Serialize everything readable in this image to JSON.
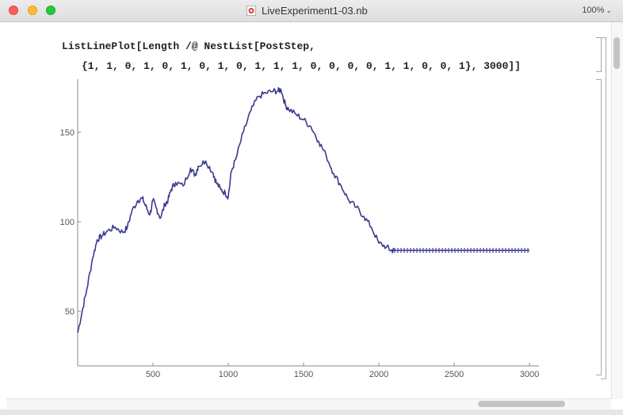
{
  "window": {
    "title": "LiveExperiment1-03.nb",
    "zoom": "100%",
    "icons": [
      "close-button",
      "minimize-button",
      "zoom-button",
      "mathematica-notebook-icon",
      "chevron-down-icon"
    ]
  },
  "input_cell": {
    "line1": "ListLinePlot[Length /@ NestList[PostStep,",
    "line2": "{1, 1, 0, 1, 0, 1, 0, 1, 0, 1, 1, 1, 0, 0, 0, 0, 1, 1, 0, 0, 1}, 3000]]"
  },
  "chart_data": {
    "type": "line",
    "title": "",
    "xlabel": "",
    "ylabel": "",
    "xlim": [
      0,
      3000
    ],
    "ylim": [
      50,
      175
    ],
    "x_ticks": [
      "500",
      "1000",
      "1500",
      "2000",
      "2500",
      "3000"
    ],
    "y_ticks": [
      "50",
      "100",
      "150"
    ],
    "grid": false,
    "series": [
      {
        "color": "#3b3b8f",
        "x": [
          0,
          30,
          60,
          100,
          130,
          160,
          200,
          250,
          300,
          330,
          360,
          400,
          430,
          450,
          480,
          500,
          520,
          550,
          580,
          600,
          620,
          650,
          700,
          750,
          780,
          800,
          850,
          900,
          920,
          950,
          980,
          1000,
          1020,
          1050,
          1100,
          1150,
          1200,
          1250,
          1300,
          1330,
          1350,
          1380,
          1400,
          1450,
          1500,
          1550,
          1600,
          1650,
          1700,
          1750,
          1800,
          1850,
          1900,
          1950,
          2000,
          2050,
          2080,
          2100,
          2200,
          2300,
          2400,
          2500,
          2600,
          2700,
          2800,
          2900,
          3000
        ],
        "y": [
          38,
          50,
          62,
          80,
          90,
          92,
          95,
          97,
          94,
          97,
          106,
          112,
          113,
          109,
          104,
          112,
          108,
          102,
          110,
          112,
          118,
          122,
          120,
          130,
          126,
          131,
          134,
          127,
          122,
          118,
          116,
          114,
          128,
          135,
          150,
          162,
          170,
          172,
          173,
          173,
          174,
          165,
          163,
          160,
          157,
          153,
          145,
          137,
          127,
          120,
          112,
          108,
          103,
          97,
          88,
          86,
          84,
          84,
          84,
          84,
          84,
          84,
          84,
          84,
          84,
          84,
          84
        ]
      }
    ]
  }
}
